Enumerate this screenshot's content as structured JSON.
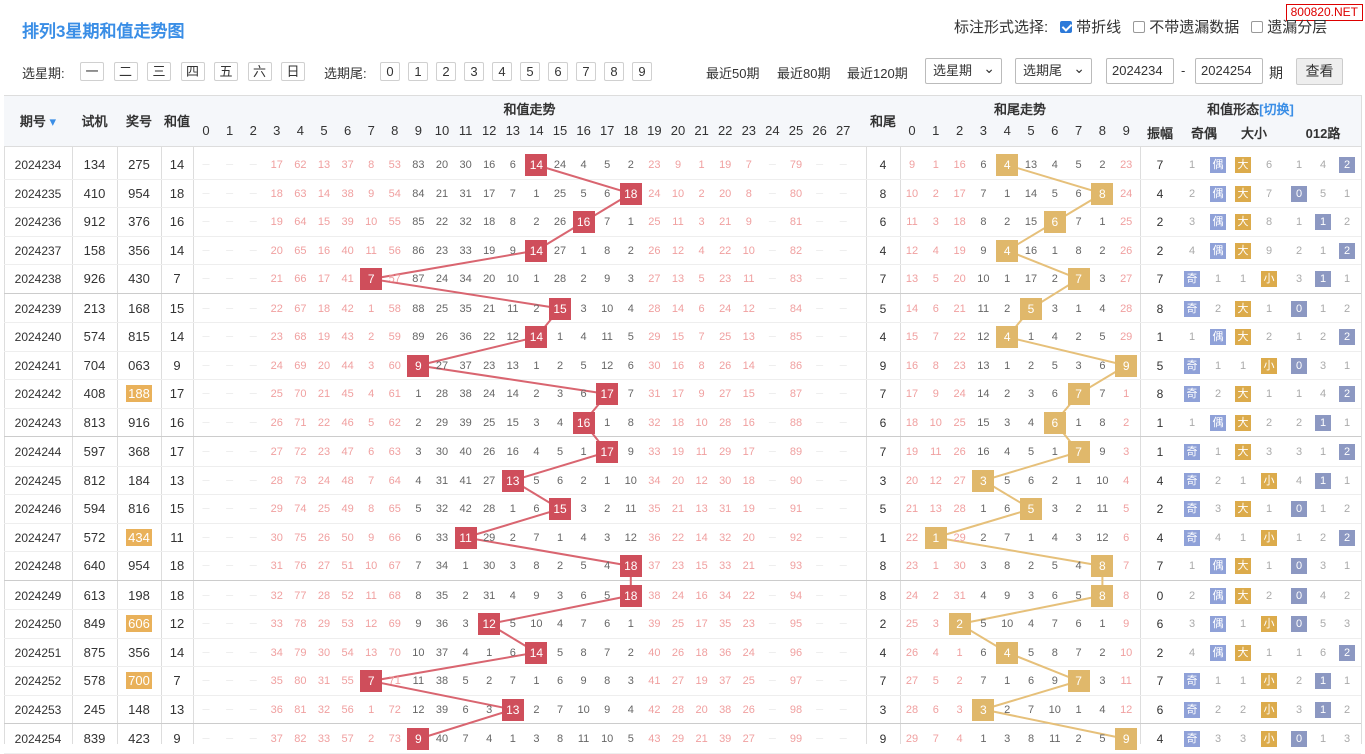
{
  "title": "排列3星期和值走势图",
  "watermark": "800820.NET",
  "options": {
    "label": "标注形式选择:",
    "o1": "带折线",
    "o2": "不带遗漏数据",
    "o3": "遗漏分层"
  },
  "filter": {
    "week_label": "选星期:",
    "weeks": [
      "一",
      "二",
      "三",
      "四",
      "五",
      "六",
      "日"
    ],
    "tail_label": "选期尾:",
    "tails": [
      "0",
      "1",
      "2",
      "3",
      "4",
      "5",
      "6",
      "7",
      "8",
      "9"
    ],
    "recent": [
      "最近50期",
      "最近80期",
      "最近120期"
    ],
    "sel1": "选星期",
    "sel2": "选期尾",
    "from": "2024234",
    "dash": "-",
    "to": "2024254",
    "qi": "期",
    "btn": "查看"
  },
  "header": {
    "issue": "期号",
    "machine": "试机",
    "prize": "奖号",
    "sum": "和值",
    "sum_trend": "和值走势",
    "tail_col": "和尾",
    "tail_trend": "和尾走势",
    "form": "和值形态",
    "switch": "[切换]",
    "amp": "振幅",
    "oe": "奇偶",
    "bs": "大小",
    "r012": "012路"
  },
  "colors": {
    "red": "#cf4e5b",
    "tan": "#e0b86b",
    "blue": "#3a8ee6"
  },
  "rows": [
    {
      "issue": "2024234",
      "m": "134",
      "p": "275",
      "s": 14,
      "t": 4,
      "amp": "7",
      "ph": false
    },
    {
      "issue": "2024235",
      "m": "410",
      "p": "954",
      "s": 18,
      "t": 8,
      "amp": "4",
      "ph": false
    },
    {
      "issue": "2024236",
      "m": "912",
      "p": "376",
      "s": 16,
      "t": 6,
      "amp": "2",
      "ph": false
    },
    {
      "issue": "2024237",
      "m": "158",
      "p": "356",
      "s": 14,
      "t": 4,
      "amp": "2",
      "ph": false
    },
    {
      "issue": "2024238",
      "m": "926",
      "p": "430",
      "s": 7,
      "t": 7,
      "amp": "7",
      "ph": false
    },
    {
      "issue": "2024239",
      "m": "213",
      "p": "168",
      "s": 15,
      "t": 5,
      "amp": "8",
      "ph": false
    },
    {
      "issue": "2024240",
      "m": "574",
      "p": "815",
      "s": 14,
      "t": 4,
      "amp": "1",
      "ph": false
    },
    {
      "issue": "2024241",
      "m": "704",
      "p": "063",
      "s": 9,
      "t": 9,
      "amp": "5",
      "ph": false
    },
    {
      "issue": "2024242",
      "m": "408",
      "p": "188",
      "s": 17,
      "t": 7,
      "amp": "8",
      "ph": true
    },
    {
      "issue": "2024243",
      "m": "813",
      "p": "916",
      "s": 16,
      "t": 6,
      "amp": "1",
      "ph": false
    },
    {
      "issue": "2024244",
      "m": "597",
      "p": "368",
      "s": 17,
      "t": 7,
      "amp": "1",
      "ph": false
    },
    {
      "issue": "2024245",
      "m": "812",
      "p": "184",
      "s": 13,
      "t": 3,
      "amp": "4",
      "ph": false
    },
    {
      "issue": "2024246",
      "m": "594",
      "p": "816",
      "s": 15,
      "t": 5,
      "amp": "2",
      "ph": false
    },
    {
      "issue": "2024247",
      "m": "572",
      "p": "434",
      "s": 11,
      "t": 1,
      "amp": "4",
      "ph": true
    },
    {
      "issue": "2024248",
      "m": "640",
      "p": "954",
      "s": 18,
      "t": 8,
      "amp": "7",
      "ph": false
    },
    {
      "issue": "2024249",
      "m": "613",
      "p": "198",
      "s": 18,
      "t": 8,
      "amp": "0",
      "ph": false
    },
    {
      "issue": "2024250",
      "m": "849",
      "p": "606",
      "s": 12,
      "t": 2,
      "amp": "6",
      "ph": true
    },
    {
      "issue": "2024251",
      "m": "875",
      "p": "356",
      "s": 14,
      "t": 4,
      "amp": "2",
      "ph": false
    },
    {
      "issue": "2024252",
      "m": "578",
      "p": "700",
      "s": 7,
      "t": 7,
      "amp": "7",
      "ph": true
    },
    {
      "issue": "2024253",
      "m": "245",
      "p": "148",
      "s": 13,
      "t": 3,
      "amp": "6",
      "ph": false
    },
    {
      "issue": "2024254",
      "m": "839",
      "p": "423",
      "s": 9,
      "t": 9,
      "amp": "4",
      "ph": false
    }
  ],
  "miss_sum": [
    [
      "—",
      "—",
      "—",
      "17",
      "62",
      "13",
      "37",
      "8",
      "53",
      "83",
      "20",
      "30",
      "16",
      "6",
      "",
      "24",
      "4",
      "5",
      "2",
      "23",
      "9",
      "1",
      "19",
      "7",
      "—",
      "79",
      "—",
      "—"
    ],
    [
      "—",
      "—",
      "—",
      "18",
      "63",
      "14",
      "38",
      "9",
      "54",
      "84",
      "21",
      "31",
      "17",
      "7",
      "1",
      "25",
      "5",
      "6",
      "",
      "24",
      "10",
      "2",
      "20",
      "8",
      "—",
      "80",
      "—",
      "—"
    ],
    [
      "—",
      "—",
      "—",
      "19",
      "64",
      "15",
      "39",
      "10",
      "55",
      "85",
      "22",
      "32",
      "18",
      "8",
      "2",
      "26",
      "",
      "7",
      "1",
      "25",
      "11",
      "3",
      "21",
      "9",
      "—",
      "81",
      "—",
      "—"
    ],
    [
      "—",
      "—",
      "—",
      "20",
      "65",
      "16",
      "40",
      "11",
      "56",
      "86",
      "23",
      "33",
      "19",
      "9",
      "",
      "27",
      "1",
      "8",
      "2",
      "26",
      "12",
      "4",
      "22",
      "10",
      "—",
      "82",
      "—",
      "—"
    ],
    [
      "—",
      "—",
      "—",
      "21",
      "66",
      "17",
      "41",
      "",
      "57",
      "87",
      "24",
      "34",
      "20",
      "10",
      "1",
      "28",
      "2",
      "9",
      "3",
      "27",
      "13",
      "5",
      "23",
      "11",
      "—",
      "83",
      "—",
      "—"
    ],
    [
      "—",
      "—",
      "—",
      "22",
      "67",
      "18",
      "42",
      "1",
      "58",
      "88",
      "25",
      "35",
      "21",
      "11",
      "2",
      "",
      "3",
      "10",
      "4",
      "28",
      "14",
      "6",
      "24",
      "12",
      "—",
      "84",
      "—",
      "—"
    ],
    [
      "—",
      "—",
      "—",
      "23",
      "68",
      "19",
      "43",
      "2",
      "59",
      "89",
      "26",
      "36",
      "22",
      "12",
      "",
      "1",
      "4",
      "11",
      "5",
      "29",
      "15",
      "7",
      "25",
      "13",
      "—",
      "85",
      "—",
      "—"
    ],
    [
      "—",
      "—",
      "—",
      "24",
      "69",
      "20",
      "44",
      "3",
      "60",
      "",
      "27",
      "37",
      "23",
      "13",
      "1",
      "2",
      "5",
      "12",
      "6",
      "30",
      "16",
      "8",
      "26",
      "14",
      "—",
      "86",
      "—",
      "—"
    ],
    [
      "—",
      "—",
      "—",
      "25",
      "70",
      "21",
      "45",
      "4",
      "61",
      "1",
      "28",
      "38",
      "24",
      "14",
      "2",
      "3",
      "6",
      "",
      "7",
      "31",
      "17",
      "9",
      "27",
      "15",
      "—",
      "87",
      "—",
      "—"
    ],
    [
      "—",
      "—",
      "—",
      "26",
      "71",
      "22",
      "46",
      "5",
      "62",
      "2",
      "29",
      "39",
      "25",
      "15",
      "3",
      "4",
      "",
      "1",
      "8",
      "32",
      "18",
      "10",
      "28",
      "16",
      "—",
      "88",
      "—",
      "—"
    ],
    [
      "—",
      "—",
      "—",
      "27",
      "72",
      "23",
      "47",
      "6",
      "63",
      "3",
      "30",
      "40",
      "26",
      "16",
      "4",
      "5",
      "1",
      "",
      "9",
      "33",
      "19",
      "11",
      "29",
      "17",
      "—",
      "89",
      "—",
      "—"
    ],
    [
      "—",
      "—",
      "—",
      "28",
      "73",
      "24",
      "48",
      "7",
      "64",
      "4",
      "31",
      "41",
      "27",
      "",
      "5",
      "6",
      "2",
      "1",
      "10",
      "34",
      "20",
      "12",
      "30",
      "18",
      "—",
      "90",
      "—",
      "—"
    ],
    [
      "—",
      "—",
      "—",
      "29",
      "74",
      "25",
      "49",
      "8",
      "65",
      "5",
      "32",
      "42",
      "28",
      "1",
      "6",
      "",
      "3",
      "2",
      "11",
      "35",
      "21",
      "13",
      "31",
      "19",
      "—",
      "91",
      "—",
      "—"
    ],
    [
      "—",
      "—",
      "—",
      "30",
      "75",
      "26",
      "50",
      "9",
      "66",
      "6",
      "33",
      "",
      "29",
      "2",
      "7",
      "1",
      "4",
      "3",
      "12",
      "36",
      "22",
      "14",
      "32",
      "20",
      "—",
      "92",
      "—",
      "—"
    ],
    [
      "—",
      "—",
      "—",
      "31",
      "76",
      "27",
      "51",
      "10",
      "67",
      "7",
      "34",
      "1",
      "30",
      "3",
      "8",
      "2",
      "5",
      "4",
      "",
      "37",
      "23",
      "15",
      "33",
      "21",
      "—",
      "93",
      "—",
      "—"
    ],
    [
      "—",
      "—",
      "—",
      "32",
      "77",
      "28",
      "52",
      "11",
      "68",
      "8",
      "35",
      "2",
      "31",
      "4",
      "9",
      "3",
      "6",
      "5",
      "",
      "38",
      "24",
      "16",
      "34",
      "22",
      "—",
      "94",
      "—",
      "—"
    ],
    [
      "—",
      "—",
      "—",
      "33",
      "78",
      "29",
      "53",
      "12",
      "69",
      "9",
      "36",
      "3",
      "",
      "5",
      "10",
      "4",
      "7",
      "6",
      "1",
      "39",
      "25",
      "17",
      "35",
      "23",
      "—",
      "95",
      "—",
      "—"
    ],
    [
      "—",
      "—",
      "—",
      "34",
      "79",
      "30",
      "54",
      "13",
      "70",
      "10",
      "37",
      "4",
      "1",
      "6",
      "",
      "5",
      "8",
      "7",
      "2",
      "40",
      "26",
      "18",
      "36",
      "24",
      "—",
      "96",
      "—",
      "—"
    ],
    [
      "—",
      "—",
      "—",
      "35",
      "80",
      "31",
      "55",
      "",
      "71",
      "11",
      "38",
      "5",
      "2",
      "7",
      "1",
      "6",
      "9",
      "8",
      "3",
      "41",
      "27",
      "19",
      "37",
      "25",
      "—",
      "97",
      "—",
      "—"
    ],
    [
      "—",
      "—",
      "—",
      "36",
      "81",
      "32",
      "56",
      "1",
      "72",
      "12",
      "39",
      "6",
      "3",
      "",
      "2",
      "7",
      "10",
      "9",
      "4",
      "42",
      "28",
      "20",
      "38",
      "26",
      "—",
      "98",
      "—",
      "—"
    ],
    [
      "—",
      "—",
      "—",
      "37",
      "82",
      "33",
      "57",
      "2",
      "73",
      "",
      "40",
      "7",
      "4",
      "1",
      "3",
      "8",
      "11",
      "10",
      "5",
      "43",
      "29",
      "21",
      "39",
      "27",
      "—",
      "99",
      "—",
      "—"
    ]
  ],
  "miss_tail": [
    [
      "9",
      "1",
      "16",
      "6",
      "",
      "13",
      "4",
      "5",
      "2",
      "23"
    ],
    [
      "10",
      "2",
      "17",
      "7",
      "1",
      "14",
      "5",
      "6",
      "",
      "24"
    ],
    [
      "11",
      "3",
      "18",
      "8",
      "2",
      "15",
      "",
      "7",
      "1",
      "25"
    ],
    [
      "12",
      "4",
      "19",
      "9",
      "",
      "16",
      "1",
      "8",
      "2",
      "26"
    ],
    [
      "13",
      "5",
      "20",
      "10",
      "1",
      "17",
      "2",
      "",
      "3",
      "27"
    ],
    [
      "14",
      "6",
      "21",
      "11",
      "2",
      "",
      "3",
      "1",
      "4",
      "28"
    ],
    [
      "15",
      "7",
      "22",
      "12",
      "",
      "1",
      "4",
      "2",
      "5",
      "29"
    ],
    [
      "16",
      "8",
      "23",
      "13",
      "1",
      "2",
      "5",
      "3",
      "6",
      ""
    ],
    [
      "17",
      "9",
      "24",
      "14",
      "2",
      "3",
      "6",
      "",
      "7",
      "1"
    ],
    [
      "18",
      "10",
      "25",
      "15",
      "3",
      "4",
      "",
      "1",
      "8",
      "2"
    ],
    [
      "19",
      "11",
      "26",
      "16",
      "4",
      "5",
      "1",
      "",
      "9",
      "3"
    ],
    [
      "20",
      "12",
      "27",
      "",
      "5",
      "6",
      "2",
      "1",
      "10",
      "4"
    ],
    [
      "21",
      "13",
      "28",
      "1",
      "6",
      "",
      "3",
      "2",
      "11",
      "5"
    ],
    [
      "22",
      "",
      "29",
      "2",
      "7",
      "1",
      "4",
      "3",
      "12",
      "6"
    ],
    [
      "23",
      "1",
      "30",
      "3",
      "8",
      "2",
      "5",
      "4",
      "",
      "7"
    ],
    [
      "24",
      "2",
      "31",
      "4",
      "9",
      "3",
      "6",
      "5",
      "",
      "8"
    ],
    [
      "25",
      "3",
      "",
      "5",
      "10",
      "4",
      "7",
      "6",
      "1",
      "9"
    ],
    [
      "26",
      "4",
      "1",
      "6",
      "",
      "5",
      "8",
      "7",
      "2",
      "10"
    ],
    [
      "27",
      "5",
      "2",
      "7",
      "1",
      "6",
      "9",
      "",
      "3",
      "11"
    ],
    [
      "28",
      "6",
      "3",
      "",
      "2",
      "7",
      "10",
      "1",
      "4",
      "12"
    ],
    [
      "29",
      "7",
      "4",
      "1",
      "3",
      "8",
      "11",
      "2",
      "5",
      ""
    ]
  ],
  "forms": [
    {
      "oe": [
        "1",
        "偶"
      ],
      "bs": [
        "大",
        "6"
      ],
      "r": [
        "1",
        "4",
        "2"
      ]
    },
    {
      "oe": [
        "2",
        "偶"
      ],
      "bs": [
        "大",
        "7"
      ],
      "r": [
        "0",
        "5",
        "1"
      ]
    },
    {
      "oe": [
        "3",
        "偶"
      ],
      "bs": [
        "大",
        "8"
      ],
      "r": [
        "1",
        "1",
        "2"
      ]
    },
    {
      "oe": [
        "4",
        "偶"
      ],
      "bs": [
        "大",
        "9"
      ],
      "r": [
        "2",
        "1",
        "2"
      ]
    },
    {
      "oe": [
        "奇",
        "1"
      ],
      "bs": [
        "1",
        "小"
      ],
      "r": [
        "3",
        "1",
        "1"
      ]
    },
    {
      "oe": [
        "奇",
        "2"
      ],
      "bs": [
        "大",
        "1"
      ],
      "r": [
        "0",
        "1",
        "2"
      ]
    },
    {
      "oe": [
        "1",
        "偶"
      ],
      "bs": [
        "大",
        "2"
      ],
      "r": [
        "1",
        "2",
        "2"
      ]
    },
    {
      "oe": [
        "奇",
        "1"
      ],
      "bs": [
        "1",
        "小"
      ],
      "r": [
        "0",
        "3",
        "1"
      ]
    },
    {
      "oe": [
        "奇",
        "2"
      ],
      "bs": [
        "大",
        "1"
      ],
      "r": [
        "1",
        "4",
        "2"
      ]
    },
    {
      "oe": [
        "1",
        "偶"
      ],
      "bs": [
        "大",
        "2"
      ],
      "r": [
        "2",
        "1",
        "1"
      ]
    },
    {
      "oe": [
        "奇",
        "1"
      ],
      "bs": [
        "大",
        "3"
      ],
      "r": [
        "3",
        "1",
        "2"
      ]
    },
    {
      "oe": [
        "奇",
        "2"
      ],
      "bs": [
        "1",
        "小"
      ],
      "r": [
        "4",
        "1",
        "1"
      ]
    },
    {
      "oe": [
        "奇",
        "3"
      ],
      "bs": [
        "大",
        "1"
      ],
      "r": [
        "0",
        "1",
        "2"
      ]
    },
    {
      "oe": [
        "奇",
        "4"
      ],
      "bs": [
        "1",
        "小"
      ],
      "r": [
        "1",
        "2",
        "2"
      ]
    },
    {
      "oe": [
        "1",
        "偶"
      ],
      "bs": [
        "大",
        "1"
      ],
      "r": [
        "0",
        "3",
        "1"
      ]
    },
    {
      "oe": [
        "2",
        "偶"
      ],
      "bs": [
        "大",
        "2"
      ],
      "r": [
        "0",
        "4",
        "2"
      ]
    },
    {
      "oe": [
        "3",
        "偶"
      ],
      "bs": [
        "1",
        "小"
      ],
      "r": [
        "0",
        "5",
        "3"
      ]
    },
    {
      "oe": [
        "4",
        "偶"
      ],
      "bs": [
        "大",
        "1"
      ],
      "r": [
        "1",
        "6",
        "2"
      ]
    },
    {
      "oe": [
        "奇",
        "1"
      ],
      "bs": [
        "1",
        "小"
      ],
      "r": [
        "2",
        "1",
        "1"
      ]
    },
    {
      "oe": [
        "奇",
        "2"
      ],
      "bs": [
        "2",
        "小"
      ],
      "r": [
        "3",
        "1",
        "2"
      ]
    },
    {
      "oe": [
        "奇",
        "3"
      ],
      "bs": [
        "3",
        "小"
      ],
      "r": [
        "0",
        "1",
        "3"
      ]
    }
  ]
}
